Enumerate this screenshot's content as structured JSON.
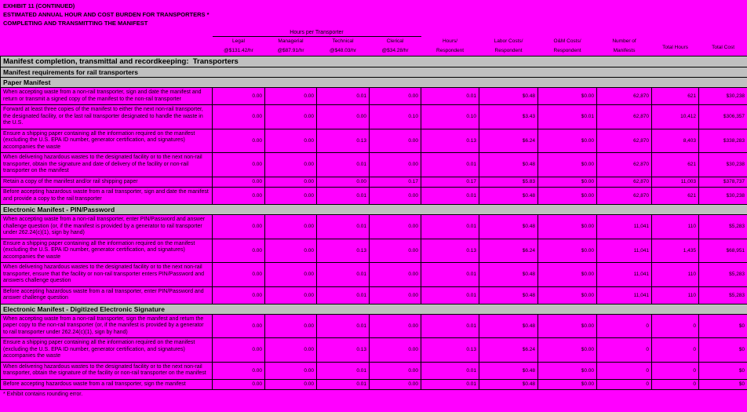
{
  "title": {
    "line1": "EXHIBIT 11 (CONTINUED)",
    "line2": "ESTIMATED ANNUAL HOUR AND COST BURDEN FOR TRANSPORTERS *",
    "line3": "COMPLETING AND TRANSMITTING THE MANIFEST"
  },
  "colors": {
    "page_background": "#ff00ff",
    "section_header_background": "#c0c0c0",
    "grid_line": "#000000",
    "text": "#000000"
  },
  "table": {
    "group_header": "Hours per Transporter",
    "columns": [
      {
        "line1": "Legal",
        "line2": "@$131.42/hr"
      },
      {
        "line1": "Managerial",
        "line2": "@$87.91/hr"
      },
      {
        "line1": "Technical",
        "line2": "@$48.03/hr"
      },
      {
        "line1": "Clerical",
        "line2": "@$34.28/hr"
      },
      {
        "line1": "Hours/",
        "line2": "Respondent"
      },
      {
        "line1": "Labor Costs/",
        "line2": "Respondent"
      },
      {
        "line1": "O&M Costs/",
        "line2": "Respondent"
      },
      {
        "line1": "Number of",
        "line2": "Manifests"
      },
      {
        "line1": "Total Hours",
        "line2": ""
      },
      {
        "line1": "Total Cost",
        "line2": ""
      }
    ],
    "banner1": "Manifest completion, transmittal and recordkeeping:  Transporters",
    "banner2": "Manifest requirements for rail transporters",
    "sections": [
      {
        "header": "Paper Manifest",
        "rows": [
          {
            "activity": "When accepting waste from a non-rail transporter, sign and date the manifest and return or transmit a signed copy of the manifest to the non-rail transporter",
            "values": [
              "0.00",
              "0.00",
              "0.01",
              "0.00",
              "0.01",
              "$0.48",
              "$0.00",
              "62,870",
              "621",
              "$30,238"
            ]
          },
          {
            "activity": "Forward at least three copies of the manifest to either the next non-rail transporter, the designated facility, or the last rail transporter designated to handle the waste in the U.S.",
            "values": [
              "0.00",
              "0.00",
              "0.00",
              "0.10",
              "0.10",
              "$3.43",
              "$0.01",
              "62,870",
              "10,412",
              "$306,357"
            ]
          },
          {
            "activity": "Ensure a shipping paper containing all the information required on the manifest (excluding the U.S. EPA ID number, generator certification, and signatures) accompanies the waste",
            "values": [
              "0.00",
              "0.00",
              "0.13",
              "0.00",
              "0.13",
              "$6.24",
              "$0.00",
              "62,870",
              "8,403",
              "$338,283"
            ]
          },
          {
            "activity": "When delivering hazardous wastes to the designated facility or to the next non-rail transporter, obtain the signature and date of delivery of the facility or non-rail transporter on the manifest",
            "values": [
              "0.00",
              "0.00",
              "0.01",
              "0.00",
              "0.01",
              "$0.48",
              "$0.00",
              "62,870",
              "621",
              "$30,238"
            ]
          },
          {
            "activity": "Retain a copy of the manifest and/or rail shipping paper",
            "values": [
              "0.00",
              "0.00",
              "0.00",
              "0.17",
              "0.17",
              "$5.83",
              "$0.00",
              "62,870",
              "11,003",
              "$378,737"
            ]
          },
          {
            "activity": "Before accepting hazardous waste from a rail transporter, sign and date the manifest and provide a copy to the rail transporter",
            "values": [
              "0.00",
              "0.00",
              "0.01",
              "0.00",
              "0.01",
              "$0.48",
              "$0.00",
              "62,870",
              "621",
              "$30,238"
            ]
          }
        ]
      },
      {
        "header": "Electronic Manifest - PIN/Password",
        "rows": [
          {
            "activity": "When accepting waste from a non-rail transporter, enter PIN/Password and answer challenge question (or, if the manifest is provided by a generator to rail transporter under 262.24(c)(1), sign by hand)",
            "values": [
              "0.00",
              "0.00",
              "0.01",
              "0.00",
              "0.01",
              "$0.48",
              "$0.00",
              "11,041",
              "110",
              "$5,283"
            ]
          },
          {
            "activity": "Ensure a shipping paper containing all the information required on the manifest (excluding the U.S. EPA ID number, generator certification, and signatures) accompanies the waste",
            "values": [
              "0.00",
              "0.00",
              "0.13",
              "0.00",
              "0.13",
              "$6.24",
              "$0.00",
              "11,041",
              "1,435",
              "$68,951"
            ]
          },
          {
            "activity": "When delivering hazardous wastes to the designated facility or to the next non-rail transporter, ensure that the facility or non-rail transporter enters PIN/Password and answers challenge question",
            "values": [
              "0.00",
              "0.00",
              "0.01",
              "0.00",
              "0.01",
              "$0.48",
              "$0.00",
              "11,041",
              "110",
              "$5,283"
            ]
          },
          {
            "activity": "Before accepting hazardous waste from a rail transporter, enter PIN/Password and answer challenge question",
            "values": [
              "0.00",
              "0.00",
              "0.01",
              "0.00",
              "0.01",
              "$0.48",
              "$0.00",
              "11,041",
              "110",
              "$5,283"
            ]
          }
        ]
      },
      {
        "header": "Electronic Manifest - Digitized Electronic Signature",
        "rows": [
          {
            "activity": "When accepting waste from a non-rail transporter, sign the manifest and return the paper copy to the non-rail transporter (or, if the manifest is provided by a generator to rail transporter under 262.24(c)(1), sign by hand)",
            "values": [
              "0.00",
              "0.00",
              "0.01",
              "0.00",
              "0.01",
              "$0.48",
              "$0.00",
              "0",
              "0",
              "$0"
            ]
          },
          {
            "activity": "Ensure a shipping paper containing all the information required on the manifest (excluding the U.S. EPA ID number, generator certification, and signatures) accompanies the waste",
            "values": [
              "0.00",
              "0.00",
              "0.13",
              "0.00",
              "0.13",
              "$6.24",
              "$0.00",
              "0",
              "0",
              "$0"
            ]
          },
          {
            "activity": "When delivering hazardous wastes to the designated facility or to the next non-rail transporter, obtain the signature of the facility or non-rail transporter on the manifest",
            "values": [
              "0.00",
              "0.00",
              "0.01",
              "0.00",
              "0.01",
              "$0.48",
              "$0.00",
              "0",
              "0",
              "$0"
            ]
          },
          {
            "activity": "Before accepting hazardous waste from a rail transporter, sign the manifest",
            "values": [
              "0.00",
              "0.00",
              "0.01",
              "0.00",
              "0.01",
              "$0.48",
              "$0.00",
              "0",
              "0",
              "$0"
            ]
          }
        ]
      }
    ],
    "footnote": "* Exhibit contains rounding error."
  }
}
